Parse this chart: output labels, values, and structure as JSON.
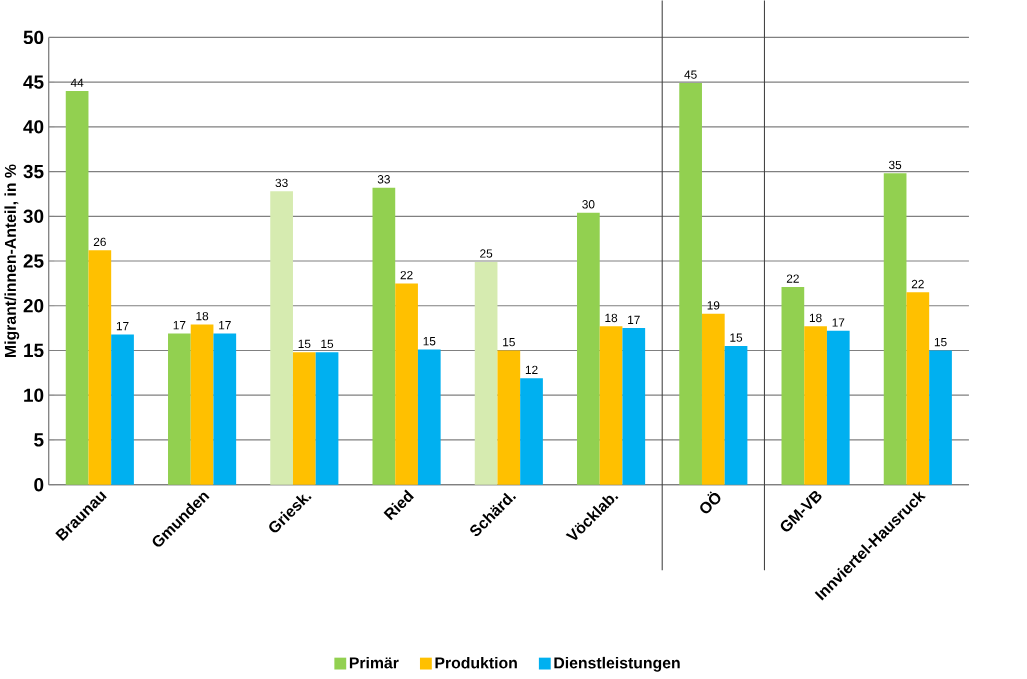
{
  "chart_data": {
    "type": "bar",
    "ylabel": "Migrant/innen-Anteil, in %",
    "categories": [
      "Braunau",
      "Gmunden",
      "Griesk.",
      "Ried",
      "Schärd.",
      "Vöcklab.",
      "OÖ",
      "GM-VB",
      "Innviertel-Hausruck"
    ],
    "series": [
      {
        "name": "Primär",
        "color": "#92d050",
        "colors": [
          "#92d050",
          "#92d050",
          "#d6ebb0",
          "#92d050",
          "#d6ebb0",
          "#92d050",
          "#92d050",
          "#92d050",
          "#92d050"
        ],
        "values": [
          44.0,
          16.9,
          32.8,
          33.2,
          24.9,
          30.4,
          44.9,
          22.1,
          34.8
        ],
        "value_labels": [
          "44",
          "17",
          "33",
          "33",
          "25",
          "30",
          "45",
          "22",
          "35"
        ]
      },
      {
        "name": "Produktion",
        "color": "#ffc000",
        "values": [
          26.2,
          17.9,
          14.8,
          22.5,
          15.0,
          17.7,
          19.1,
          17.7,
          21.5
        ],
        "value_labels": [
          "26",
          "18",
          "15",
          "22",
          "15",
          "18",
          "19",
          "18",
          "22"
        ]
      },
      {
        "name": "Dienstleistungen",
        "color": "#00b0f0",
        "values": [
          16.8,
          16.9,
          14.8,
          15.1,
          11.9,
          17.5,
          15.5,
          17.2,
          15.0
        ],
        "value_labels": [
          "17",
          "17",
          "15",
          "15",
          "12",
          "17",
          "15",
          "17",
          "15"
        ]
      }
    ],
    "ylim": [
      0,
      50
    ],
    "yticks": [
      0,
      5,
      10,
      15,
      20,
      25,
      30,
      35,
      40,
      45,
      50
    ],
    "grid": "y",
    "legend": "bottom"
  }
}
